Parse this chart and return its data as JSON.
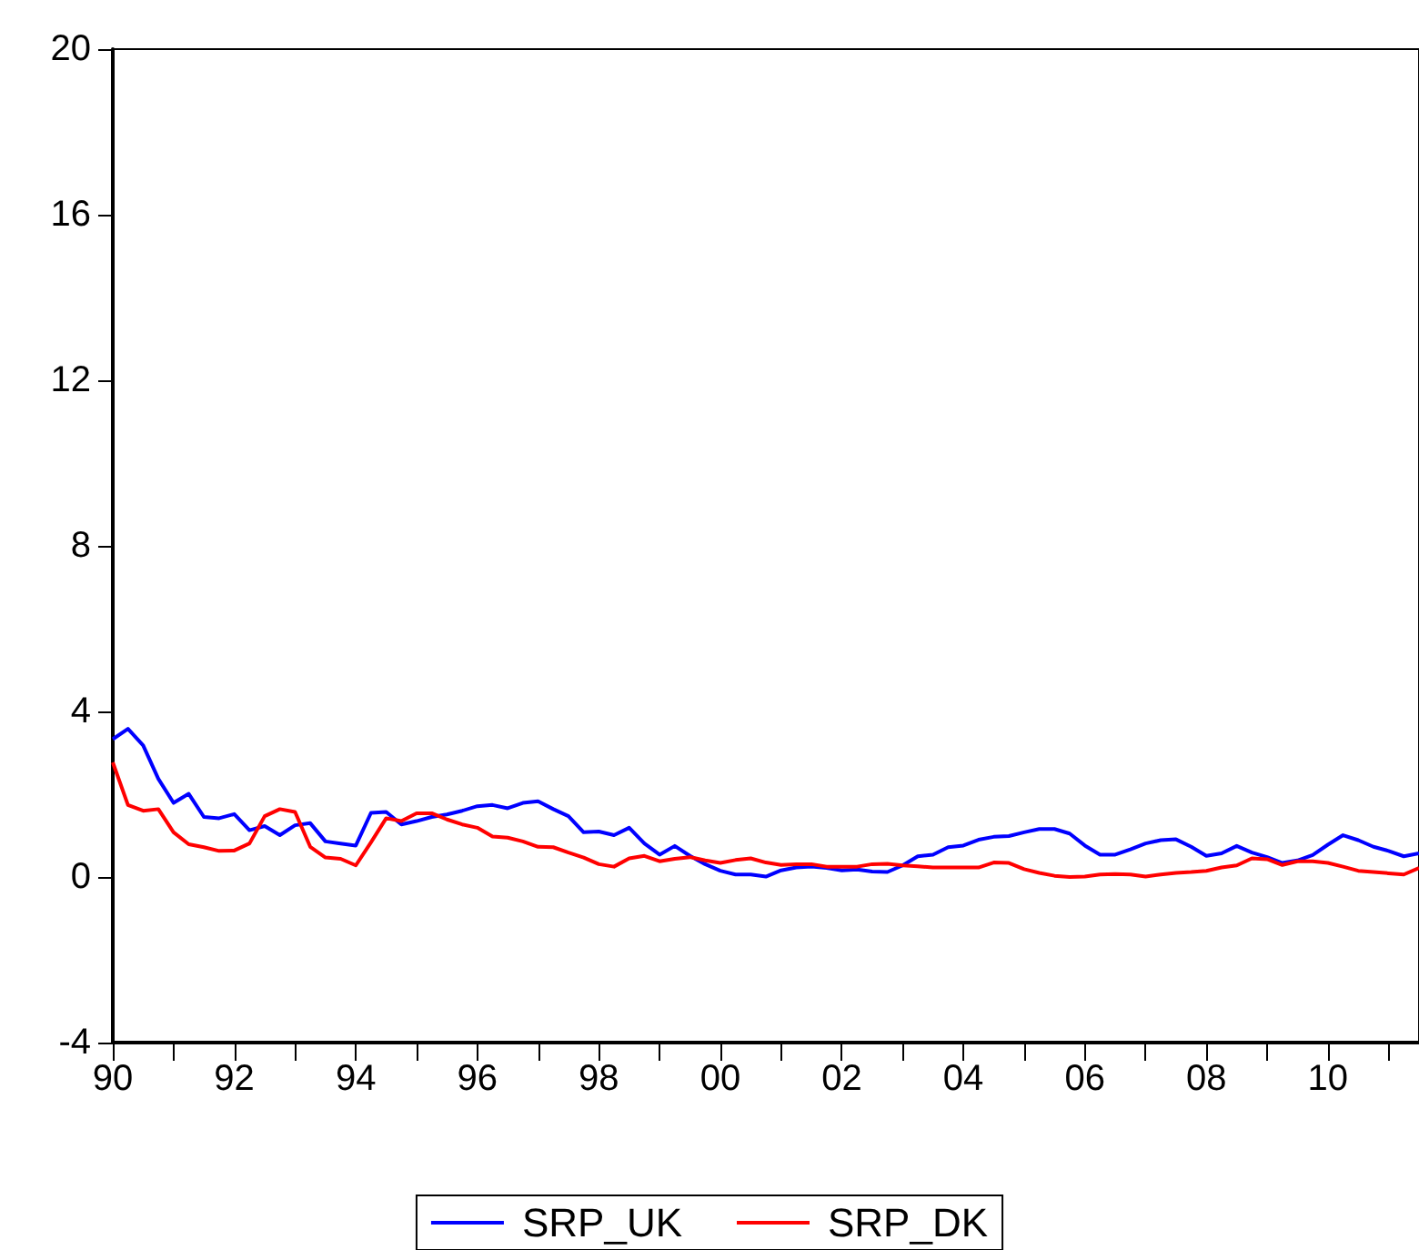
{
  "chart_data": {
    "type": "line",
    "x": [
      1990,
      1990.25,
      1990.5,
      1990.75,
      1991,
      1991.25,
      1991.5,
      1991.75,
      1992,
      1992.25,
      1992.5,
      1992.75,
      1993,
      1993.25,
      1993.5,
      1993.75,
      1994,
      1994.25,
      1994.5,
      1994.75,
      1995,
      1995.25,
      1995.5,
      1995.75,
      1996,
      1996.25,
      1996.5,
      1996.75,
      1997,
      1997.25,
      1997.5,
      1997.75,
      1998,
      1998.25,
      1998.5,
      1998.75,
      1999,
      1999.25,
      1999.5,
      1999.75,
      2000,
      2000.25,
      2000.5,
      2000.75,
      2001,
      2001.25,
      2001.5,
      2001.75,
      2002,
      2002.25,
      2002.5,
      2002.75,
      2003,
      2003.25,
      2003.5,
      2003.75,
      2004,
      2004.25,
      2004.5,
      2004.75,
      2005,
      2005.25,
      2005.5,
      2005.75,
      2006,
      2006.25,
      2006.5,
      2006.75,
      2007,
      2007.25,
      2007.5,
      2007.75,
      2008,
      2008.25,
      2008.5,
      2008.75,
      2009,
      2009.25,
      2009.5,
      2009.75,
      2010,
      2010.25,
      2010.5,
      2010.75,
      2011,
      2011.25,
      2011.5
    ],
    "series": [
      {
        "name": "SRP_UK",
        "color": "#0000ff",
        "values": [
          3.33,
          3.58,
          3.18,
          2.37,
          1.79,
          2.01,
          1.45,
          1.42,
          1.52,
          1.13,
          1.23,
          1.01,
          1.25,
          1.3,
          0.86,
          0.81,
          0.76,
          1.55,
          1.57,
          1.27,
          1.35,
          1.45,
          1.51,
          1.6,
          1.71,
          1.74,
          1.66,
          1.79,
          1.83,
          1.64,
          1.47,
          1.08,
          1.1,
          1.01,
          1.19,
          0.81,
          0.54,
          0.75,
          0.51,
          0.31,
          0.15,
          0.06,
          0.06,
          0.01,
          0.16,
          0.23,
          0.25,
          0.22,
          0.16,
          0.18,
          0.13,
          0.12,
          0.28,
          0.5,
          0.54,
          0.72,
          0.76,
          0.9,
          0.97,
          0.99,
          1.08,
          1.16,
          1.16,
          1.05,
          0.76,
          0.54,
          0.54,
          0.67,
          0.81,
          0.89,
          0.91,
          0.73,
          0.51,
          0.57,
          0.75,
          0.59,
          0.48,
          0.34,
          0.4,
          0.53,
          0.78,
          1.01,
          0.89,
          0.73,
          0.63,
          0.5,
          0.57
        ]
      },
      {
        "name": "SRP_DK",
        "color": "#ff0000",
        "values": [
          2.77,
          1.74,
          1.6,
          1.64,
          1.08,
          0.79,
          0.72,
          0.63,
          0.64,
          0.81,
          1.47,
          1.64,
          1.57,
          0.73,
          0.47,
          0.44,
          0.28,
          0.84,
          1.42,
          1.35,
          1.54,
          1.54,
          1.39,
          1.27,
          1.19,
          0.98,
          0.95,
          0.86,
          0.73,
          0.72,
          0.59,
          0.47,
          0.31,
          0.25,
          0.45,
          0.51,
          0.38,
          0.44,
          0.48,
          0.4,
          0.34,
          0.41,
          0.45,
          0.35,
          0.29,
          0.31,
          0.31,
          0.25,
          0.25,
          0.25,
          0.31,
          0.32,
          0.28,
          0.26,
          0.23,
          0.23,
          0.23,
          0.23,
          0.35,
          0.34,
          0.19,
          0.1,
          0.03,
          0.0,
          0.01,
          0.06,
          0.07,
          0.06,
          0.01,
          0.06,
          0.1,
          0.12,
          0.15,
          0.23,
          0.28,
          0.45,
          0.43,
          0.29,
          0.38,
          0.38,
          0.34,
          0.25,
          0.15,
          0.12,
          0.09,
          0.06,
          0.22
        ]
      }
    ],
    "xlim": [
      1990,
      2011.5
    ],
    "xticks": [
      {
        "value": 1990,
        "label": "90"
      },
      {
        "value": 1991,
        "label": null
      },
      {
        "value": 1992,
        "label": "92"
      },
      {
        "value": 1993,
        "label": null
      },
      {
        "value": 1994,
        "label": "94"
      },
      {
        "value": 1995,
        "label": null
      },
      {
        "value": 1996,
        "label": "96"
      },
      {
        "value": 1997,
        "label": null
      },
      {
        "value": 1998,
        "label": "98"
      },
      {
        "value": 1999,
        "label": null
      },
      {
        "value": 2000,
        "label": "00"
      },
      {
        "value": 2001,
        "label": null
      },
      {
        "value": 2002,
        "label": "02"
      },
      {
        "value": 2003,
        "label": null
      },
      {
        "value": 2004,
        "label": "04"
      },
      {
        "value": 2005,
        "label": null
      },
      {
        "value": 2006,
        "label": "06"
      },
      {
        "value": 2007,
        "label": null
      },
      {
        "value": 2008,
        "label": "08"
      },
      {
        "value": 2009,
        "label": null
      },
      {
        "value": 2010,
        "label": "10"
      },
      {
        "value": 2011,
        "label": null
      }
    ],
    "ylim": [
      -4,
      20
    ],
    "yticks": [
      -4,
      0,
      4,
      8,
      12,
      16,
      20
    ],
    "grid": false,
    "legend": "bottom",
    "marker": "none",
    "line_style": "solid"
  }
}
